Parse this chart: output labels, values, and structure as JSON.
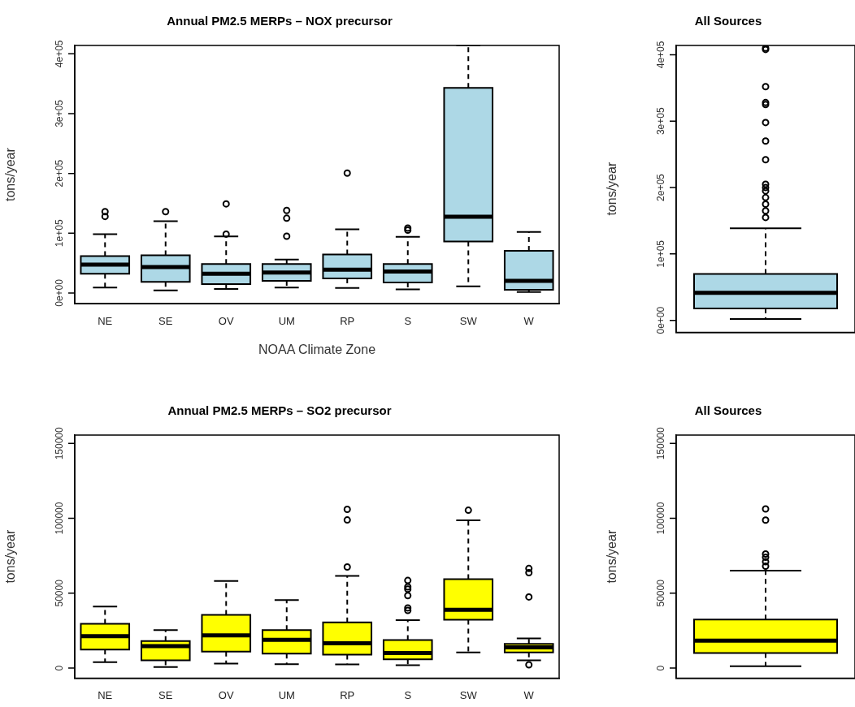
{
  "chart_data": [
    {
      "type": "box",
      "title": "Annual PM2.5 MERPs – NOX precursor",
      "xlabel": "NOAA Climate Zone",
      "ylabel": "tons/year",
      "categories": [
        "NE",
        "SE",
        "OV",
        "UM",
        "RP",
        "S",
        "SW",
        "W"
      ],
      "color": "#add8e6",
      "grid": false,
      "marker": "circle",
      "ylim": [
        -18000,
        414000
      ],
      "yticks": [
        {
          "value": 0,
          "label": "0e+00"
        },
        {
          "value": 100000,
          "label": "1e+05"
        },
        {
          "value": 200000,
          "label": "2e+05"
        },
        {
          "value": 300000,
          "label": "3e+05"
        },
        {
          "value": 400000,
          "label": "4e+05"
        }
      ],
      "boxes": [
        {
          "low": 9000,
          "q1": 32000,
          "median": 47400,
          "q3": 61800,
          "high": 98500,
          "outliers": [
            128000,
            136000
          ]
        },
        {
          "low": 4500,
          "q1": 18700,
          "median": 43500,
          "q3": 63000,
          "high": 120000,
          "outliers": [
            136000
          ]
        },
        {
          "low": 6600,
          "q1": 14700,
          "median": 32000,
          "q3": 48600,
          "high": 94500,
          "outliers": [
            98500,
            149000
          ]
        },
        {
          "low": 9000,
          "q1": 20400,
          "median": 34200,
          "q3": 48600,
          "high": 56000,
          "outliers": [
            95000,
            125000,
            138000
          ]
        },
        {
          "low": 8400,
          "q1": 24400,
          "median": 39000,
          "q3": 64500,
          "high": 106500,
          "outliers": [
            200500
          ]
        },
        {
          "low": 6000,
          "q1": 17500,
          "median": 36000,
          "q3": 48600,
          "high": 93800,
          "outliers": [
            105000,
            108700
          ]
        },
        {
          "low": 11200,
          "q1": 86300,
          "median": 127700,
          "q3": 343000,
          "high": 414000
        },
        {
          "low": 1500,
          "q1": 5500,
          "median": 20400,
          "q3": 70500,
          "high": 102000
        }
      ]
    },
    {
      "type": "box",
      "title": "All Sources",
      "ylabel": "tons/year",
      "categories": [
        null
      ],
      "color": "#add8e6",
      "grid": false,
      "marker": "circle",
      "ylim": [
        -18000,
        414000
      ],
      "yticks": [
        {
          "value": 0,
          "label": "0e+00"
        },
        {
          "value": 100000,
          "label": "1e+05"
        },
        {
          "value": 200000,
          "label": "2e+05"
        },
        {
          "value": 300000,
          "label": "3e+05"
        },
        {
          "value": 400000,
          "label": "4e+05"
        }
      ],
      "boxes": [
        {
          "low": 2000,
          "q1": 18000,
          "median": 41500,
          "q3": 70000,
          "high": 138500,
          "outliers": [
            155000,
            165000,
            175000,
            185000,
            195000,
            200000,
            205000,
            242000,
            270000,
            298000,
            325000,
            328000,
            352000,
            408000,
            410000
          ]
        }
      ]
    },
    {
      "type": "box",
      "title": "Annual PM2.5 MERPs – SO2 precursor",
      "ylabel": "tons/year",
      "categories": [
        "NE",
        "SE",
        "OV",
        "UM",
        "RP",
        "S",
        "SW",
        "W"
      ],
      "color": "#ffff00",
      "grid": false,
      "marker": "circle",
      "ylim": [
        -6700,
        155600
      ],
      "yticks": [
        0,
        50000,
        100000,
        150000
      ],
      "boxes": [
        {
          "low": 3900,
          "q1": 12300,
          "median": 21300,
          "q3": 29500,
          "high": 41100
        },
        {
          "low": 650,
          "q1": 5200,
          "median": 14600,
          "q3": 18100,
          "high": 25400
        },
        {
          "low": 3000,
          "q1": 11000,
          "median": 21900,
          "q3": 35500,
          "high": 58100
        },
        {
          "low": 2600,
          "q1": 9700,
          "median": 18900,
          "q3": 25400,
          "high": 45400
        },
        {
          "low": 2400,
          "q1": 9000,
          "median": 16600,
          "q3": 30500,
          "high": 61500,
          "outliers": [
            67500,
            98900,
            106000
          ]
        },
        {
          "low": 1900,
          "q1": 5800,
          "median": 10100,
          "q3": 18700,
          "high": 32000,
          "outliers": [
            38500,
            40200,
            48400,
            52700,
            54200,
            58500
          ]
        },
        {
          "low": 10500,
          "q1": 32300,
          "median": 38900,
          "q3": 59400,
          "high": 98700,
          "outliers": [
            105400
          ]
        },
        {
          "low": 5200,
          "q1": 10500,
          "median": 13800,
          "q3": 16100,
          "high": 19800,
          "outliers": [
            2200,
            47500,
            63700,
            66500
          ]
        }
      ]
    },
    {
      "type": "box",
      "title": "All Sources",
      "ylabel": "tons/year",
      "categories": [
        null
      ],
      "color": "#ffff00",
      "grid": false,
      "marker": "circle",
      "ylim": [
        -6700,
        155600
      ],
      "yticks": [
        0,
        50000,
        100000,
        150000
      ],
      "boxes": [
        {
          "low": 1300,
          "q1": 10000,
          "median": 18300,
          "q3": 32400,
          "high": 65100,
          "outliers": [
            68000,
            71000,
            74000,
            76200,
            98800,
            106300
          ]
        }
      ]
    }
  ]
}
